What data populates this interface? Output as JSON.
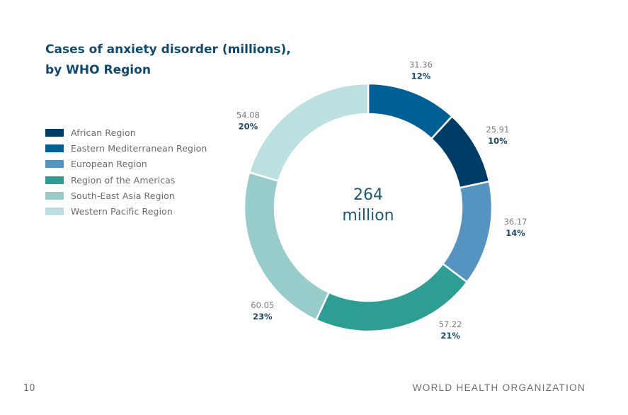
{
  "page": {
    "number": "10",
    "organization": "WORLD HEALTH ORGANIZATION"
  },
  "chart_data": {
    "type": "pie",
    "style": "donut",
    "title": [
      "Cases of anxiety disorder (millions),",
      "by WHO Region"
    ],
    "unit": "millions",
    "center_label": [
      "264",
      "million"
    ],
    "total": 264,
    "slices": [
      {
        "name": "African Region",
        "value": 25.91,
        "percent": "10%",
        "color": "#003d66"
      },
      {
        "name": "Eastern Mediterranean Region",
        "value": 31.36,
        "percent": "12%",
        "color": "#005f94"
      },
      {
        "name": "European Region",
        "value": 36.17,
        "percent": "14%",
        "color": "#5593c1"
      },
      {
        "name": "Region of the Americas",
        "value": 57.22,
        "percent": "21%",
        "color": "#2e9d94"
      },
      {
        "name": "South-East Asia Region",
        "value": 60.05,
        "percent": "23%",
        "color": "#97cccb"
      },
      {
        "name": "Western Pacific Region",
        "value": 54.08,
        "percent": "20%",
        "color": "#bbe0df"
      }
    ],
    "draw_order": [
      "Eastern Mediterranean Region",
      "African Region",
      "European Region",
      "Region of the Americas",
      "South-East Asia Region",
      "Western Pacific Region"
    ],
    "start_angle_deg": 0,
    "direction": "clockwise",
    "legend_position": "left"
  }
}
